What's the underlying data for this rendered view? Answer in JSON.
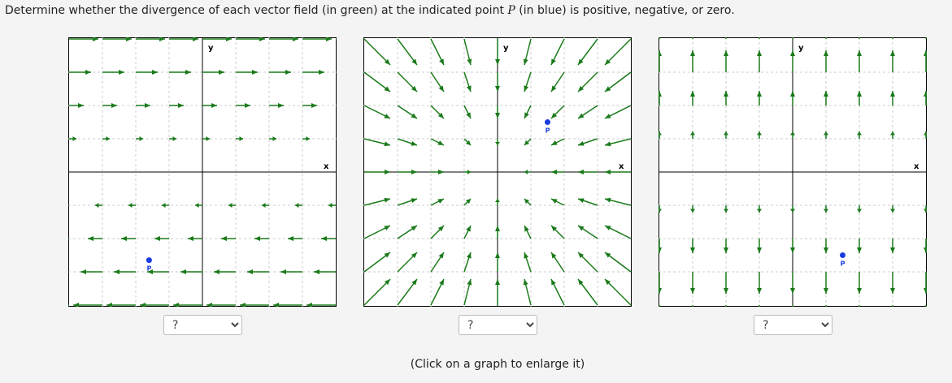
{
  "instruction": {
    "before": "Determine whether the divergence of each vector field (in green) at the indicated point ",
    "point": "P",
    "after": " (in blue) is positive, negative, or zero."
  },
  "graphs": [
    {
      "y_label": "y",
      "x_label": "x",
      "point_label": "P",
      "answer": "?"
    },
    {
      "y_label": "y",
      "x_label": "x",
      "point_label": "P",
      "answer": "?"
    },
    {
      "y_label": "y",
      "x_label": "x",
      "point_label": "P",
      "answer": "?"
    }
  ],
  "footer": "(Click on a graph to enlarge it)"
}
